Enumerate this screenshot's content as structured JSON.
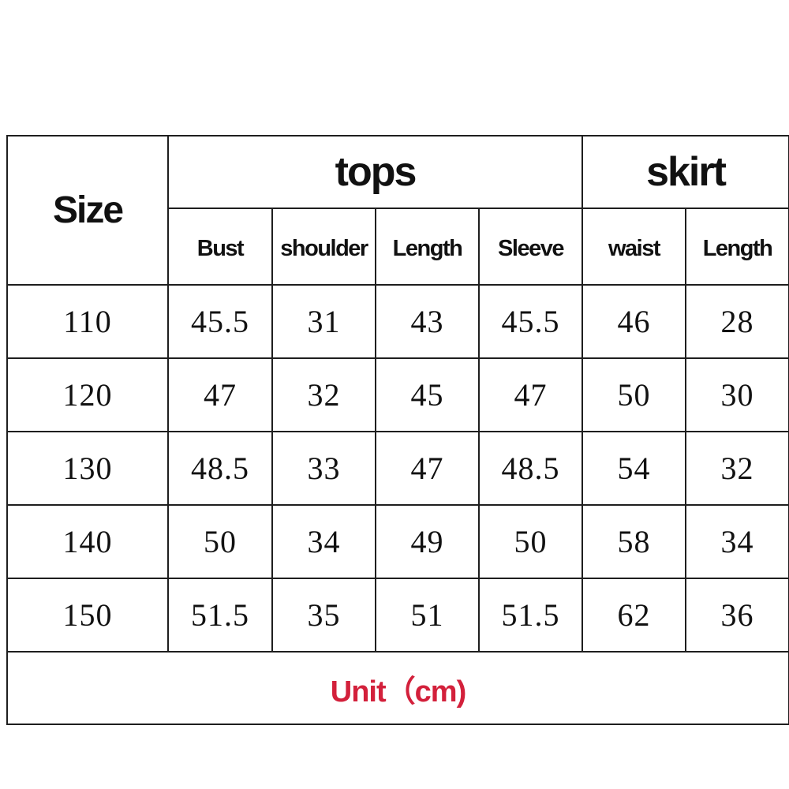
{
  "header": {
    "size_label": "Size",
    "group_tops": "tops",
    "group_skirt": "skirt",
    "columns": [
      "Bust",
      "shoulder",
      "Length",
      "Sleeve",
      "waist",
      "Length"
    ]
  },
  "rows": [
    [
      "110",
      "45.5",
      "31",
      "43",
      "45.5",
      "46",
      "28"
    ],
    [
      "120",
      "47",
      "32",
      "45",
      "47",
      "50",
      "30"
    ],
    [
      "130",
      "48.5",
      "33",
      "47",
      "48.5",
      "54",
      "32"
    ],
    [
      "140",
      "50",
      "34",
      "49",
      "50",
      "58",
      "34"
    ],
    [
      "150",
      "51.5",
      "35",
      "51",
      "51.5",
      "62",
      "36"
    ]
  ],
  "footer": {
    "unit_label": "Unit（cm)"
  },
  "colors": {
    "unit_text": "#d3203b",
    "border": "#1e1e1e"
  }
}
